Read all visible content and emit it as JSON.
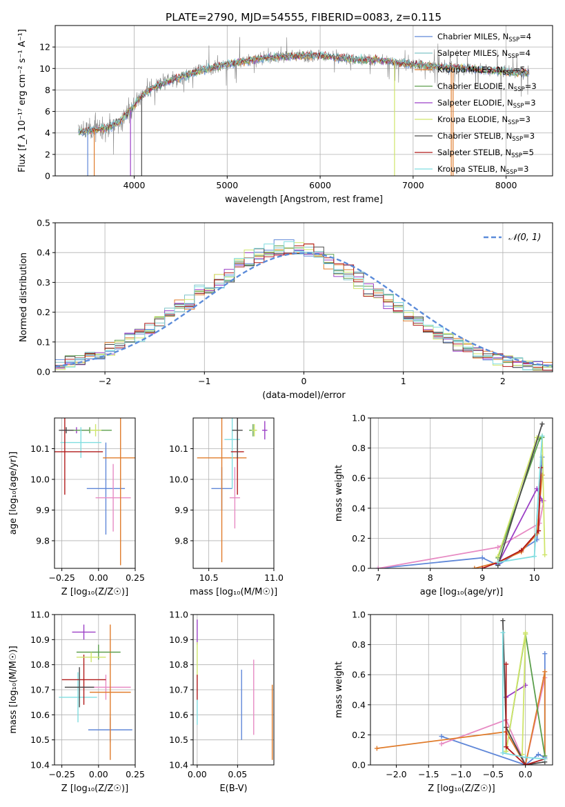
{
  "title": "PLATE=2790, MJD=54555, FIBERID=0083, z=0.115",
  "colors": {
    "chabrier_miles": "#5f87d8",
    "salpeter_miles": "#7fc4c8",
    "kroupa_miles": "#e07b2a",
    "chabrier_elodie": "#5a9e4b",
    "salpeter_elodie": "#9b3fc6",
    "kroupa_elodie": "#cfe56a",
    "chabrier_stelib": "#4a4a4a",
    "salpeter_stelib": "#b11919",
    "kroupa_stelib": "#7fdde0",
    "pink": "#e78ac3",
    "normal": "#5b8bd9",
    "data_grey": "#808080"
  },
  "chart_data": [
    {
      "id": "spectrum",
      "type": "line",
      "xlabel": "wavelength [Angstrom, rest frame]",
      "ylabel": "Flux [f_λ 10⁻¹⁷ erg cm⁻² s⁻¹ A⁻¹]",
      "xlim": [
        3150,
        8500
      ],
      "ylim": [
        0,
        14
      ],
      "xticks": [
        4000,
        5000,
        6000,
        7000,
        8000
      ],
      "yticks": [
        0,
        2,
        4,
        6,
        8,
        10,
        12
      ],
      "legend_position": "right",
      "legend": [
        {
          "name": "Chabrier MILES, N",
          "sub": "SSP",
          "tail": "=4",
          "color": "#5f87d8"
        },
        {
          "name": "Salpeter MILES, N",
          "sub": "SSP",
          "tail": "=4",
          "color": "#7fc4c8"
        },
        {
          "name": "Kroupa MILES, N",
          "sub": "SSP",
          "tail": "=5",
          "color": "#e07b2a"
        },
        {
          "name": "Chabrier ELODIE, N",
          "sub": "SSP",
          "tail": "=3",
          "color": "#5a9e4b"
        },
        {
          "name": "Salpeter ELODIE, N",
          "sub": "SSP",
          "tail": "=3",
          "color": "#9b3fc6"
        },
        {
          "name": "Kroupa ELODIE, N",
          "sub": "SSP",
          "tail": "=3",
          "color": "#cfe56a"
        },
        {
          "name": "Chabrier STELIB, N",
          "sub": "SSP",
          "tail": "=3",
          "color": "#4a4a4a"
        },
        {
          "name": "Salpeter STELIB, N",
          "sub": "SSP",
          "tail": "=5",
          "color": "#b11919"
        },
        {
          "name": "Kroupa STELIB, N",
          "sub": "SSP",
          "tail": "=3",
          "color": "#7fdde0"
        }
      ],
      "data_range": [
        3400,
        8250
      ],
      "continuum": [
        [
          3400,
          4.1
        ],
        [
          3600,
          4.3
        ],
        [
          3750,
          4.6
        ],
        [
          3850,
          5.1
        ],
        [
          3950,
          6.0
        ],
        [
          4050,
          7.2
        ],
        [
          4200,
          8.2
        ],
        [
          4400,
          8.9
        ],
        [
          4600,
          9.5
        ],
        [
          4800,
          10.0
        ],
        [
          5000,
          10.4
        ],
        [
          5200,
          10.7
        ],
        [
          5400,
          11.0
        ],
        [
          5600,
          11.1
        ],
        [
          5800,
          11.2
        ],
        [
          6000,
          11.2
        ],
        [
          6200,
          11.0
        ],
        [
          6400,
          10.8
        ],
        [
          6600,
          10.8
        ],
        [
          6800,
          10.6
        ],
        [
          7000,
          10.4
        ],
        [
          7200,
          10.2
        ],
        [
          7400,
          10.1
        ],
        [
          7600,
          10.0
        ],
        [
          7800,
          9.8
        ],
        [
          8000,
          9.7
        ],
        [
          8250,
          9.5
        ]
      ],
      "spikes": [
        [
          3500,
          0
        ],
        [
          3570,
          0
        ],
        [
          3960,
          0
        ],
        [
          4080,
          0
        ],
        [
          6800,
          0
        ],
        [
          7410,
          0
        ],
        [
          7430,
          0
        ]
      ]
    },
    {
      "id": "residuals",
      "type": "step-histogram",
      "xlabel": "(data-model)/error",
      "ylabel": "Normed distribution",
      "xlim": [
        -2.5,
        2.5
      ],
      "ylim": [
        0,
        0.5
      ],
      "xticks": [
        -2,
        -1,
        0,
        1,
        2
      ],
      "yticks": [
        0.0,
        0.1,
        0.2,
        0.3,
        0.4,
        0.5
      ],
      "legend_position": "top-right",
      "normal_label": "𝒩(0, 1)",
      "bin_width": 0.1
    },
    {
      "id": "age_vs_Z",
      "type": "errorbar",
      "xlabel": "Z [log₁₀(Z/Z☉)]",
      "ylabel": "age  [log₁₀(age/yr)]",
      "xlim": [
        -0.3,
        0.25
      ],
      "ylim": [
        9.71,
        10.2
      ],
      "xticks": [
        -0.25,
        0.0,
        0.25
      ],
      "yticks": [
        9.8,
        9.9,
        10.0,
        10.1
      ],
      "points": [
        {
          "x": 0.05,
          "y": 9.97,
          "xerr": 0.13,
          "yerr": 0.15,
          "color": "#5f87d8"
        },
        {
          "x": 0.1,
          "y": 9.94,
          "xerr": 0.12,
          "yerr": 0.11,
          "color": "#e78ac3"
        },
        {
          "x": 0.15,
          "y": 10.07,
          "xerr": 0.12,
          "yerr": 0.35,
          "color": "#e07b2a"
        },
        {
          "x": -0.15,
          "y": 10.16,
          "xerr": 0.1,
          "yerr": 0.01,
          "color": "#9b3fc6"
        },
        {
          "x": -0.06,
          "y": 10.16,
          "xerr": 0.15,
          "yerr": 0.01,
          "color": "#5a9e4b"
        },
        {
          "x": -0.12,
          "y": 10.12,
          "xerr": 0.14,
          "yerr": 0.05,
          "color": "#7fdde0"
        },
        {
          "x": -0.23,
          "y": 10.09,
          "xerr": 0.26,
          "yerr": 0.14,
          "color": "#b11919"
        },
        {
          "x": -0.02,
          "y": 10.16,
          "xerr": 0.04,
          "yerr": 0.02,
          "color": "#cfe56a"
        },
        {
          "x": -0.22,
          "y": 10.16,
          "xerr": 0.05,
          "yerr": 0.01,
          "color": "#4a4a4a"
        }
      ]
    },
    {
      "id": "age_vs_mass",
      "type": "errorbar",
      "xlabel": "mass [log₁₀(M/M☉)]",
      "ylabel": "",
      "xlim": [
        10.38,
        11.0
      ],
      "ylim": [
        9.71,
        10.2
      ],
      "xticks": [
        10.5,
        11.0
      ],
      "yticks": [
        9.8,
        9.9,
        10.0,
        10.1
      ],
      "points": [
        {
          "x": 10.6,
          "y": 9.97,
          "xerr": 0.08,
          "yerr": 0.07,
          "color": "#5f87d8"
        },
        {
          "x": 10.7,
          "y": 9.94,
          "xerr": 0.04,
          "yerr": 0.1,
          "color": "#e78ac3"
        },
        {
          "x": 10.6,
          "y": 10.07,
          "xerr": 0.19,
          "yerr": 0.34,
          "color": "#e07b2a"
        },
        {
          "x": 10.68,
          "y": 10.13,
          "xerr": 0.06,
          "yerr": 0.16,
          "color": "#7fdde0"
        },
        {
          "x": 10.72,
          "y": 10.09,
          "xerr": 0.05,
          "yerr": 0.14,
          "color": "#b11919"
        },
        {
          "x": 10.72,
          "y": 10.16,
          "xerr": 0.04,
          "yerr": 0.09,
          "color": "#4a4a4a"
        },
        {
          "x": 10.84,
          "y": 10.16,
          "xerr": 0.03,
          "yerr": 0.02,
          "color": "#5a9e4b"
        },
        {
          "x": 10.93,
          "y": 10.16,
          "xerr": 0.02,
          "yerr": 0.03,
          "color": "#9b3fc6"
        },
        {
          "x": 10.85,
          "y": 10.16,
          "xerr": 0.02,
          "yerr": 0.02,
          "color": "#cfe56a"
        }
      ]
    },
    {
      "id": "massweight_vs_age",
      "type": "line",
      "xlabel": "age  [log₁₀(age/yr)]",
      "ylabel": "mass weight",
      "xlim": [
        6.85,
        10.35
      ],
      "ylim": [
        0,
        1
      ],
      "xticks": [
        7,
        8,
        9,
        10
      ],
      "yticks": [
        0.0,
        0.2,
        0.4,
        0.6,
        0.8,
        1.0
      ],
      "series": [
        {
          "color": "#5f87d8",
          "x": [
            7.0,
            9.0,
            9.3,
            10.05,
            10.15
          ],
          "y": [
            0.0,
            0.07,
            0.02,
            0.19,
            0.74
          ]
        },
        {
          "color": "#e78ac3",
          "x": [
            7.0,
            9.3,
            10.1,
            10.18
          ],
          "y": [
            0.0,
            0.14,
            0.3,
            0.45
          ]
        },
        {
          "color": "#e07b2a",
          "x": [
            8.85,
            9.3,
            9.75,
            10.05,
            10.15
          ],
          "y": [
            0.0,
            0.04,
            0.11,
            0.23,
            0.62
          ]
        },
        {
          "color": "#5a9e4b",
          "x": [
            9.3,
            10.1,
            10.15
          ],
          "y": [
            0.07,
            0.86,
            0.87
          ]
        },
        {
          "color": "#9b3fc6",
          "x": [
            9.3,
            10.05,
            10.15
          ],
          "y": [
            0.03,
            0.53,
            0.45
          ]
        },
        {
          "color": "#cfe56a",
          "x": [
            9.3,
            10.05,
            10.15,
            10.2
          ],
          "y": [
            0.08,
            0.87,
            0.88,
            0.09
          ]
        },
        {
          "color": "#4a4a4a",
          "x": [
            9.3,
            10.15
          ],
          "y": [
            0.02,
            0.96
          ]
        },
        {
          "color": "#b11919",
          "x": [
            9.0,
            9.3,
            9.75,
            10.08,
            10.12
          ],
          "y": [
            0.0,
            0.04,
            0.12,
            0.25,
            0.67
          ]
        },
        {
          "color": "#7fdde0",
          "x": [
            9.3,
            10.0,
            10.15
          ],
          "y": [
            0.04,
            0.08,
            0.88
          ]
        }
      ]
    },
    {
      "id": "mass_vs_Z",
      "type": "errorbar",
      "xlabel": "Z [log₁₀(Z/Z☉)]",
      "ylabel": "mass [log₁₀(M/M☉)]",
      "xlim": [
        -0.3,
        0.25
      ],
      "ylim": [
        10.4,
        11.0
      ],
      "xticks": [
        -0.25,
        0.0,
        0.25
      ],
      "yticks": [
        10.4,
        10.5,
        10.6,
        10.7,
        10.8,
        10.9,
        11.0
      ],
      "points": [
        {
          "x": 0.08,
          "y": 10.54,
          "xerr": 0.15,
          "yerr": 0.05,
          "color": "#5f87d8"
        },
        {
          "x": 0.05,
          "y": 10.71,
          "xerr": 0.17,
          "yerr": 0.05,
          "color": "#e78ac3"
        },
        {
          "x": 0.08,
          "y": 10.69,
          "xerr": 0.14,
          "yerr": 0.27,
          "color": "#e07b2a"
        },
        {
          "x": -0.14,
          "y": 10.67,
          "xerr": 0.13,
          "yerr": 0.1,
          "color": "#7fdde0"
        },
        {
          "x": -0.1,
          "y": 10.74,
          "xerr": 0.15,
          "yerr": 0.1,
          "color": "#b11919"
        },
        {
          "x": -0.13,
          "y": 10.71,
          "xerr": 0.1,
          "yerr": 0.08,
          "color": "#4a4a4a"
        },
        {
          "x": 0.0,
          "y": 10.85,
          "xerr": 0.15,
          "yerr": 0.03,
          "color": "#5a9e4b"
        },
        {
          "x": -0.1,
          "y": 10.93,
          "xerr": 0.08,
          "yerr": 0.03,
          "color": "#9b3fc6"
        },
        {
          "x": -0.05,
          "y": 10.83,
          "xerr": 0.1,
          "yerr": 0.02,
          "color": "#cfe56a"
        }
      ]
    },
    {
      "id": "mass_vs_EBV",
      "type": "errorbar",
      "xlabel": "E(B-V)",
      "ylabel": "",
      "xlim": [
        -0.005,
        0.095
      ],
      "ylim": [
        10.4,
        11.0
      ],
      "xticks": [
        0.0,
        0.05
      ],
      "yticks": [
        10.4,
        10.5,
        10.6,
        10.7,
        10.8,
        10.9,
        11.0
      ],
      "points": [
        {
          "x": 0.055,
          "y": 10.64,
          "xerr": 0.0,
          "yerr": 0.14,
          "color": "#5f87d8"
        },
        {
          "x": 0.07,
          "y": 10.67,
          "xerr": 0.0,
          "yerr": 0.15,
          "color": "#e78ac3"
        },
        {
          "x": 0.093,
          "y": 10.57,
          "xerr": 0.0,
          "yerr": 0.15,
          "color": "#e07b2a"
        },
        {
          "x": 0.0,
          "y": 10.93,
          "xerr": 0.0,
          "yerr": 0.05,
          "color": "#9b3fc6"
        },
        {
          "x": 0.0,
          "y": 10.82,
          "xerr": 0.0,
          "yerr": 0.07,
          "color": "#cfe56a"
        },
        {
          "x": 0.0,
          "y": 10.71,
          "xerr": 0.0,
          "yerr": 0.05,
          "color": "#b11919"
        },
        {
          "x": 0.0,
          "y": 10.61,
          "xerr": 0.0,
          "yerr": 0.05,
          "color": "#7fdde0"
        }
      ]
    },
    {
      "id": "massweight_vs_Z",
      "type": "line",
      "xlabel": "Z [log₁₀(Z/Z☉)]",
      "ylabel": "mass weight",
      "xlim": [
        -2.4,
        0.42
      ],
      "ylim": [
        0,
        1
      ],
      "xticks": [
        -2.0,
        -1.5,
        -1.0,
        -0.5,
        0.0
      ],
      "yticks": [
        0.0,
        0.2,
        0.4,
        0.6,
        0.8,
        1.0
      ],
      "series": [
        {
          "color": "#5f87d8",
          "x": [
            -1.3,
            0.0,
            0.2,
            0.3,
            0.3
          ],
          "y": [
            0.19,
            0.0,
            0.07,
            0.05,
            0.74
          ]
        },
        {
          "color": "#e78ac3",
          "x": [
            -1.3,
            -0.3,
            0.0,
            0.3
          ],
          "y": [
            0.14,
            0.3,
            0.0,
            0.58
          ]
        },
        {
          "color": "#e07b2a",
          "x": [
            -2.3,
            -0.3,
            0.0,
            0.3,
            0.3
          ],
          "y": [
            0.11,
            0.22,
            0.0,
            0.62,
            0.04
          ]
        },
        {
          "color": "#5a9e4b",
          "x": [
            -0.3,
            0.0,
            0.3
          ],
          "y": [
            0.09,
            0.87,
            0.06
          ]
        },
        {
          "color": "#9b3fc6",
          "x": [
            -0.3,
            0.0
          ],
          "y": [
            0.45,
            0.53
          ]
        },
        {
          "color": "#cfe56a",
          "x": [
            -0.3,
            0.0,
            -0.05,
            0.0
          ],
          "y": [
            0.09,
            0.88,
            0.07,
            0.87
          ]
        },
        {
          "color": "#4a4a4a",
          "x": [
            -0.35,
            -0.3,
            0.0,
            0.3
          ],
          "y": [
            0.96,
            0.25,
            0.0,
            0.02
          ]
        },
        {
          "color": "#b11919",
          "x": [
            -0.3,
            -0.3,
            0.0,
            0.3
          ],
          "y": [
            0.67,
            0.12,
            0.0,
            0.04
          ]
        },
        {
          "color": "#7fdde0",
          "x": [
            -0.35,
            -0.35,
            0.0,
            0.3
          ],
          "y": [
            0.88,
            0.08,
            0.05,
            0.04
          ]
        }
      ]
    }
  ]
}
